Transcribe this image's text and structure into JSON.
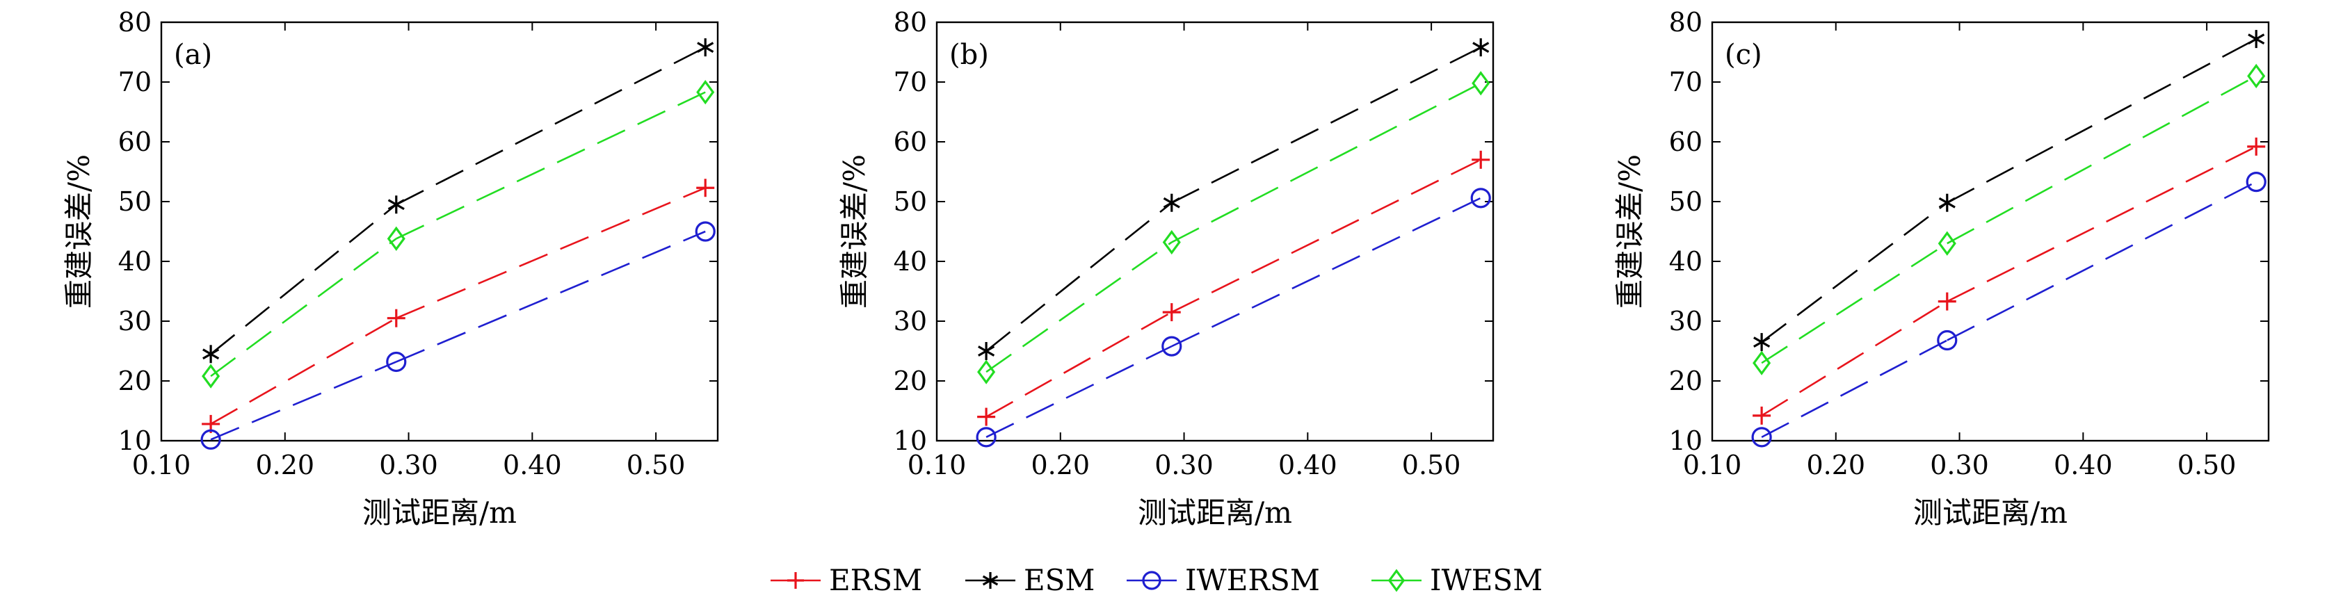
{
  "chart_data": [
    {
      "type": "line",
      "panel_label": "(a)",
      "xlabel": "测试距离/m",
      "ylabel": "重建误差/%",
      "xlim": [
        0.1,
        0.55
      ],
      "ylim": [
        10,
        80
      ],
      "xticks": [
        0.1,
        0.2,
        0.3,
        0.4,
        0.5
      ],
      "xtick_labels": [
        "0.10",
        "0.20",
        "0.30",
        "0.40",
        "0.50"
      ],
      "yticks": [
        10,
        20,
        30,
        40,
        50,
        60,
        70,
        80
      ],
      "ytick_labels": [
        "10",
        "20",
        "30",
        "40",
        "50",
        "60",
        "70",
        "80"
      ],
      "x": [
        0.14,
        0.29,
        0.54
      ],
      "series": [
        {
          "name": "ERSM",
          "values": [
            12.8,
            30.5,
            52.3
          ]
        },
        {
          "name": "ESM",
          "values": [
            24.5,
            49.5,
            75.8
          ]
        },
        {
          "name": "IWERSM",
          "values": [
            10.2,
            23.2,
            45.0
          ]
        },
        {
          "name": "IWESM",
          "values": [
            20.8,
            43.8,
            68.3
          ]
        }
      ]
    },
    {
      "type": "line",
      "panel_label": "(b)",
      "xlabel": "测试距离/m",
      "ylabel": "重建误差/%",
      "xlim": [
        0.1,
        0.55
      ],
      "ylim": [
        10,
        80
      ],
      "xticks": [
        0.1,
        0.2,
        0.3,
        0.4,
        0.5
      ],
      "xtick_labels": [
        "0.10",
        "0.20",
        "0.30",
        "0.40",
        "0.50"
      ],
      "yticks": [
        10,
        20,
        30,
        40,
        50,
        60,
        70,
        80
      ],
      "ytick_labels": [
        "10",
        "20",
        "30",
        "40",
        "50",
        "60",
        "70",
        "80"
      ],
      "x": [
        0.14,
        0.29,
        0.54
      ],
      "series": [
        {
          "name": "ERSM",
          "values": [
            14.0,
            31.5,
            57.0
          ]
        },
        {
          "name": "ESM",
          "values": [
            25.0,
            49.8,
            75.8
          ]
        },
        {
          "name": "IWERSM",
          "values": [
            10.6,
            25.8,
            50.6
          ]
        },
        {
          "name": "IWESM",
          "values": [
            21.5,
            43.2,
            69.8
          ]
        }
      ]
    },
    {
      "type": "line",
      "panel_label": "(c)",
      "xlabel": "测试距离/m",
      "ylabel": "重建误差/%",
      "xlim": [
        0.1,
        0.55
      ],
      "ylim": [
        10,
        80
      ],
      "xticks": [
        0.1,
        0.2,
        0.3,
        0.4,
        0.5
      ],
      "xtick_labels": [
        "0.10",
        "0.20",
        "0.30",
        "0.40",
        "0.50"
      ],
      "yticks": [
        10,
        20,
        30,
        40,
        50,
        60,
        70,
        80
      ],
      "ytick_labels": [
        "10",
        "20",
        "30",
        "40",
        "50",
        "60",
        "70",
        "80"
      ],
      "x": [
        0.14,
        0.29,
        0.54
      ],
      "series": [
        {
          "name": "ERSM",
          "values": [
            14.2,
            33.3,
            59.2
          ]
        },
        {
          "name": "ESM",
          "values": [
            26.5,
            49.8,
            77.2
          ]
        },
        {
          "name": "IWERSM",
          "values": [
            10.6,
            26.8,
            53.3
          ]
        },
        {
          "name": "IWESM",
          "values": [
            23.0,
            43.0,
            71.0
          ]
        }
      ]
    }
  ],
  "legend": {
    "placement": "bottom-center",
    "items": [
      {
        "name": "ERSM",
        "color": "#e8141c",
        "marker": "plus"
      },
      {
        "name": "ESM",
        "color": "#000000",
        "marker": "asterisk"
      },
      {
        "name": "IWERSM",
        "color": "#1f1fd0",
        "marker": "circle"
      },
      {
        "name": "IWESM",
        "color": "#22dd22",
        "marker": "diamond"
      }
    ]
  }
}
